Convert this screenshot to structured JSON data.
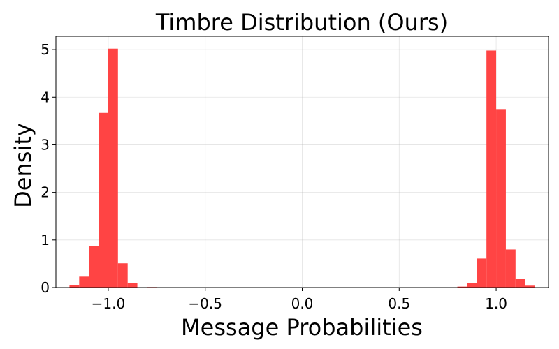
{
  "chart_data": {
    "type": "bar",
    "subtype": "histogram",
    "title": "Timbre Distribution (Ours)",
    "xlabel": "Message Probabilities",
    "ylabel": "Density",
    "xlim": [
      -1.27,
      1.27
    ],
    "ylim": [
      0,
      5.28
    ],
    "bin_width": 0.05,
    "bar_color": "#ff4444",
    "grid": true,
    "xticks": [
      -1.0,
      -0.5,
      0.0,
      0.5,
      1.0
    ],
    "xtick_labels": [
      "−1.0",
      "−0.5",
      "0.0",
      "0.5",
      "1.0"
    ],
    "yticks": [
      0,
      1,
      2,
      3,
      4,
      5
    ],
    "ytick_labels": [
      "0",
      "1",
      "2",
      "3",
      "4",
      "5"
    ],
    "bins": [
      {
        "start": -1.2,
        "value": 0.05
      },
      {
        "start": -1.15,
        "value": 0.23
      },
      {
        "start": -1.1,
        "value": 0.88
      },
      {
        "start": -1.05,
        "value": 3.67
      },
      {
        "start": -1.0,
        "value": 5.02
      },
      {
        "start": -0.95,
        "value": 0.51
      },
      {
        "start": -0.9,
        "value": 0.1
      },
      {
        "start": -0.8,
        "value": 0.01
      },
      {
        "start": 0.8,
        "value": 0.02
      },
      {
        "start": 0.85,
        "value": 0.1
      },
      {
        "start": 0.9,
        "value": 0.61
      },
      {
        "start": 0.95,
        "value": 4.98
      },
      {
        "start": 1.0,
        "value": 3.75
      },
      {
        "start": 1.05,
        "value": 0.8
      },
      {
        "start": 1.1,
        "value": 0.18
      },
      {
        "start": 1.15,
        "value": 0.04
      }
    ]
  }
}
